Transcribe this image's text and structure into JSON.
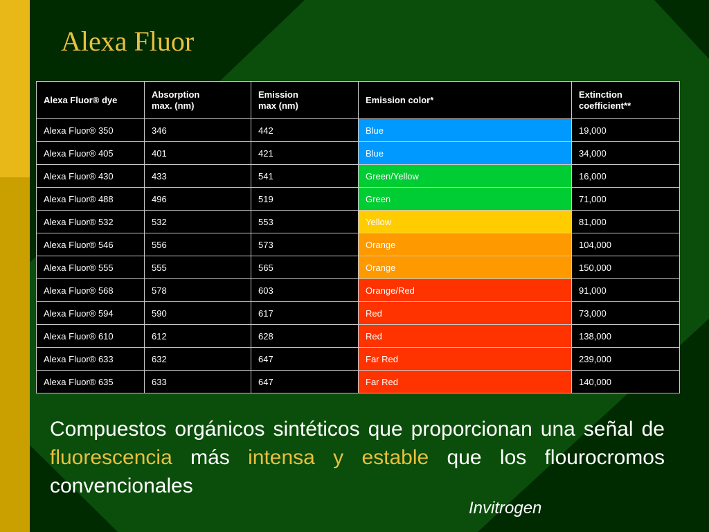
{
  "colors": {
    "background": "#002a00",
    "diamond_green": "#0b4d0b",
    "left_bar_top": "#e8b818",
    "left_bar_bottom": "#c9a000",
    "title": "#e8c040",
    "highlight": "#e8c040",
    "text": "#ffffff"
  },
  "title": "Alexa Fluor",
  "table": {
    "headers": [
      {
        "line1": "Alexa Fluor® dye",
        "line2": ""
      },
      {
        "line1": "Absorption",
        "line2": "max. (nm)"
      },
      {
        "line1": "Emission",
        "line2": "max (nm)"
      },
      {
        "line1": "Emission color*",
        "line2": ""
      },
      {
        "line1": "Extinction",
        "line2": "coefficient**"
      }
    ],
    "rows": [
      {
        "dye": "Alexa Fluor® 350",
        "absorption": "346",
        "emission": "442",
        "color_name": "Blue",
        "color_fill": "#0099ff",
        "extinction": "19,000"
      },
      {
        "dye": "Alexa Fluor® 405",
        "absorption": "401",
        "emission": "421",
        "color_name": "Blue",
        "color_fill": "#0099ff",
        "extinction": "34,000"
      },
      {
        "dye": "Alexa Fluor® 430",
        "absorption": "433",
        "emission": "541",
        "color_name": "Green/Yellow",
        "color_fill": "#00cc33",
        "extinction": "16,000"
      },
      {
        "dye": "Alexa Fluor® 488",
        "absorption": "496",
        "emission": "519",
        "color_name": "Green",
        "color_fill": "#00cc33",
        "extinction": "71,000"
      },
      {
        "dye": "Alexa Fluor® 532",
        "absorption": "532",
        "emission": "553",
        "color_name": "Yellow",
        "color_fill": "#ffcc00",
        "extinction": "81,000"
      },
      {
        "dye": "Alexa Fluor® 546",
        "absorption": "556",
        "emission": "573",
        "color_name": "Orange",
        "color_fill": "#ff9900",
        "extinction": "104,000"
      },
      {
        "dye": "Alexa Fluor® 555",
        "absorption": "555",
        "emission": "565",
        "color_name": "Orange",
        "color_fill": "#ff9900",
        "extinction": "150,000"
      },
      {
        "dye": "Alexa Fluor® 568",
        "absorption": "578",
        "emission": "603",
        "color_name": "Orange/Red",
        "color_fill": "#ff3300",
        "extinction": "91,000"
      },
      {
        "dye": "Alexa Fluor® 594",
        "absorption": "590",
        "emission": "617",
        "color_name": "Red",
        "color_fill": "#ff3300",
        "extinction": "73,000"
      },
      {
        "dye": "Alexa Fluor® 610",
        "absorption": "612",
        "emission": "628",
        "color_name": "Red",
        "color_fill": "#ff3300",
        "extinction": "138,000"
      },
      {
        "dye": "Alexa Fluor® 633",
        "absorption": "632",
        "emission": "647",
        "color_name": "Far Red",
        "color_fill": "#ff3300",
        "extinction": "239,000"
      },
      {
        "dye": "Alexa Fluor® 635",
        "absorption": "633",
        "emission": "647",
        "color_name": "Far Red",
        "color_fill": "#ff3300",
        "extinction": "140,000"
      }
    ]
  },
  "body": {
    "parts": [
      {
        "text": "Compuestos orgánicos sintéticos que proporcionan una señal de ",
        "highlight": false
      },
      {
        "text": "fluorescencia",
        "highlight": true
      },
      {
        "text": " más ",
        "highlight": false
      },
      {
        "text": "intensa y estable",
        "highlight": true
      },
      {
        "text": " que los flourocromos convencionales",
        "highlight": false
      }
    ]
  },
  "credit": "Invitrogen"
}
